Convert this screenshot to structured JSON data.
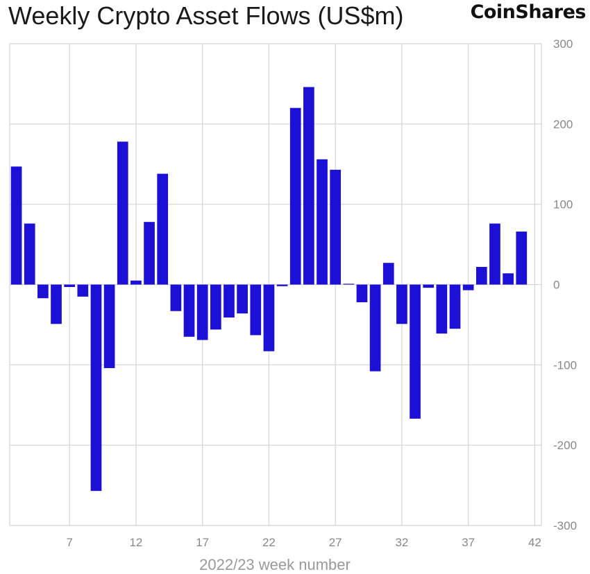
{
  "chart_data": {
    "type": "bar",
    "title": "Weekly Crypto Asset Flows (US$m)",
    "brand": "CoinShares",
    "xlabel": "2022/23 week number",
    "ylabel": "",
    "ylim": [
      -300,
      300
    ],
    "yticks": [
      300,
      200,
      100,
      0,
      -100,
      -200,
      -300
    ],
    "xticks": [
      7,
      12,
      17,
      22,
      27,
      32,
      37,
      42
    ],
    "x": [
      3,
      4,
      5,
      6,
      7,
      8,
      9,
      10,
      11,
      12,
      13,
      14,
      15,
      16,
      17,
      18,
      19,
      20,
      21,
      22,
      23,
      24,
      25,
      26,
      27,
      28,
      29,
      30,
      31,
      32,
      33,
      34,
      35,
      36,
      37,
      38,
      39,
      40,
      41,
      42
    ],
    "values": [
      147,
      76,
      -17,
      -49,
      -3,
      -15,
      -257,
      -104,
      178,
      5,
      78,
      138,
      -33,
      -65,
      -69,
      -56,
      -41,
      -36,
      -63,
      -83,
      -2,
      220,
      246,
      156,
      143,
      1,
      -22,
      -108,
      27,
      -49,
      -167,
      -4,
      -61,
      -55,
      -7,
      22,
      76,
      14,
      66,
      0
    ],
    "bar_color": "#1c0fd6",
    "grid": true,
    "y_axis_position": "right"
  }
}
